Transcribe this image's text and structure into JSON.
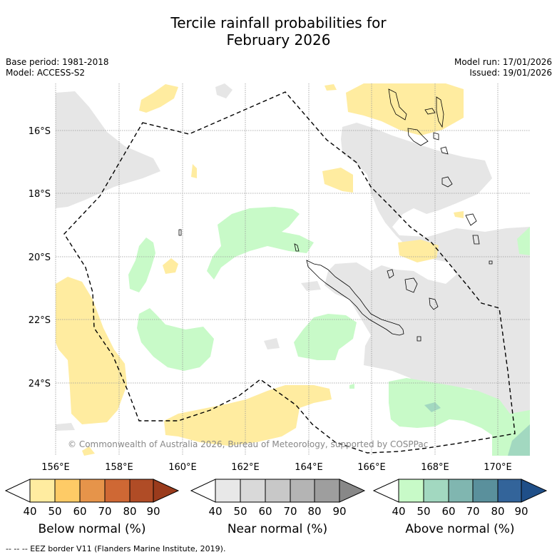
{
  "title": {
    "line1": "Tercile rainfall probabilities for",
    "line2": "February 2026"
  },
  "meta": {
    "base_period": "Base period: 1981-2018",
    "model": "Model: ACCESS-S2",
    "model_run": "Model run: 17/01/2026",
    "issued": "Issued: 19/01/2026"
  },
  "map": {
    "lat_labels": [
      "16°S",
      "18°S",
      "20°S",
      "22°S",
      "24°S"
    ],
    "lon_labels": [
      "156°E",
      "158°E",
      "160°E",
      "162°E",
      "164°E",
      "166°E",
      "168°E",
      "170°E"
    ],
    "copyright": "© Commonwealth of Australia 2026, Bureau of Meteorology, supported by COSPPac"
  },
  "colorbars": [
    {
      "label": "Below normal (%)",
      "ticks": [
        "40",
        "50",
        "60",
        "70",
        "80",
        "90"
      ],
      "colors": [
        "#ffffff",
        "#ffeca0",
        "#fecb66",
        "#e6944a",
        "#cf6834",
        "#b04c26",
        "#9a3b1c"
      ]
    },
    {
      "label": "Near normal (%)",
      "ticks": [
        "40",
        "50",
        "60",
        "70",
        "80",
        "90"
      ],
      "colors": [
        "#ffffff",
        "#e8e8e8",
        "#d9d9d9",
        "#c8c8c8",
        "#b4b4b4",
        "#9e9e9e",
        "#888888"
      ]
    },
    {
      "label": "Above normal (%)",
      "ticks": [
        "40",
        "50",
        "60",
        "70",
        "80",
        "90"
      ],
      "colors": [
        "#ffffff",
        "#c8fac8",
        "#a2d8c0",
        "#80b6b0",
        "#5a909c",
        "#33649a",
        "#1f4f88"
      ]
    }
  ],
  "colors": {
    "below": "#ffeca0",
    "near": "#e6e6e6",
    "above": "#c8fac8",
    "above2": "#a2d8c0",
    "above3": "#80b6b0"
  },
  "footer": "--  --  -- EEZ border V11 (Flanders Marine Institute, 2019)."
}
